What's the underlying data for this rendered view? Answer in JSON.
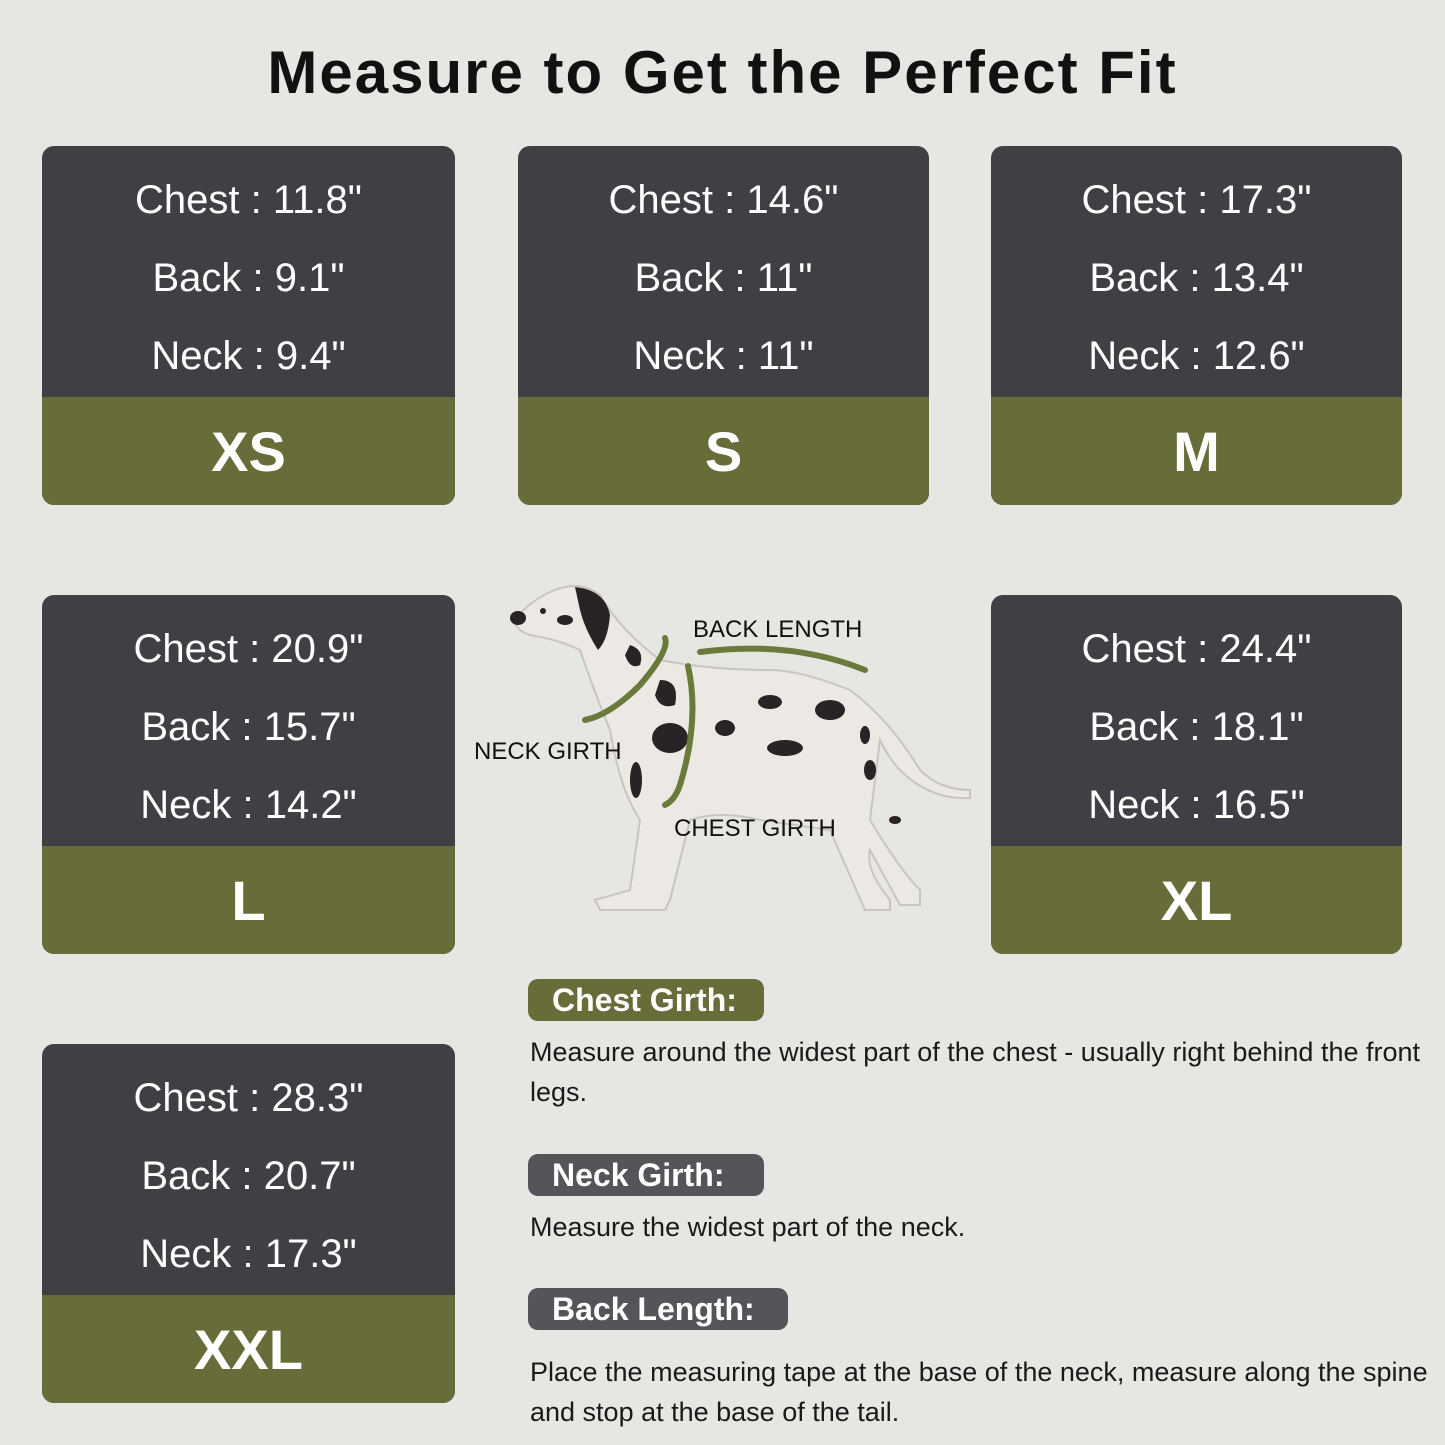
{
  "title": "Measure to Get the Perfect Fit",
  "sizes": [
    {
      "size": "XS",
      "chest": "Chest : 11.8\"",
      "back": "Back : 9.1\"",
      "neck": "Neck : 9.4\""
    },
    {
      "size": "S",
      "chest": "Chest : 14.6\"",
      "back": "Back : 11\"",
      "neck": "Neck : 11\""
    },
    {
      "size": "M",
      "chest": "Chest : 17.3\"",
      "back": "Back : 13.4\"",
      "neck": "Neck : 12.6\""
    },
    {
      "size": "L",
      "chest": "Chest : 20.9\"",
      "back": "Back : 15.7\"",
      "neck": "Neck : 14.2\""
    },
    {
      "size": "XL",
      "chest": "Chest : 24.4\"",
      "back": "Back : 18.1\"",
      "neck": "Neck : 16.5\""
    },
    {
      "size": "XXL",
      "chest": "Chest : 28.3\"",
      "back": "Back : 20.7\"",
      "neck": "Neck : 17.3\""
    }
  ],
  "diagram": {
    "back_length": "BACK LENGTH",
    "neck_girth": "NECK GIRTH",
    "chest_girth": "CHEST GIRTH"
  },
  "instructions": [
    {
      "label": "Chest Girth:",
      "text": "Measure around the widest part of the chest - usually right behind the front legs.",
      "color": "#676c38"
    },
    {
      "label": "Neck Girth:",
      "text": "Measure the widest part of the neck.",
      "color": "#535558"
    },
    {
      "label": "Back Length:",
      "text": "Place the measuring tape at the base of the neck, measure along the spine and stop at the base of the tail.",
      "color": "#535558"
    }
  ],
  "colors": {
    "background": "#e6e6e2",
    "card": "#3f4043",
    "accent": "#676c38"
  }
}
